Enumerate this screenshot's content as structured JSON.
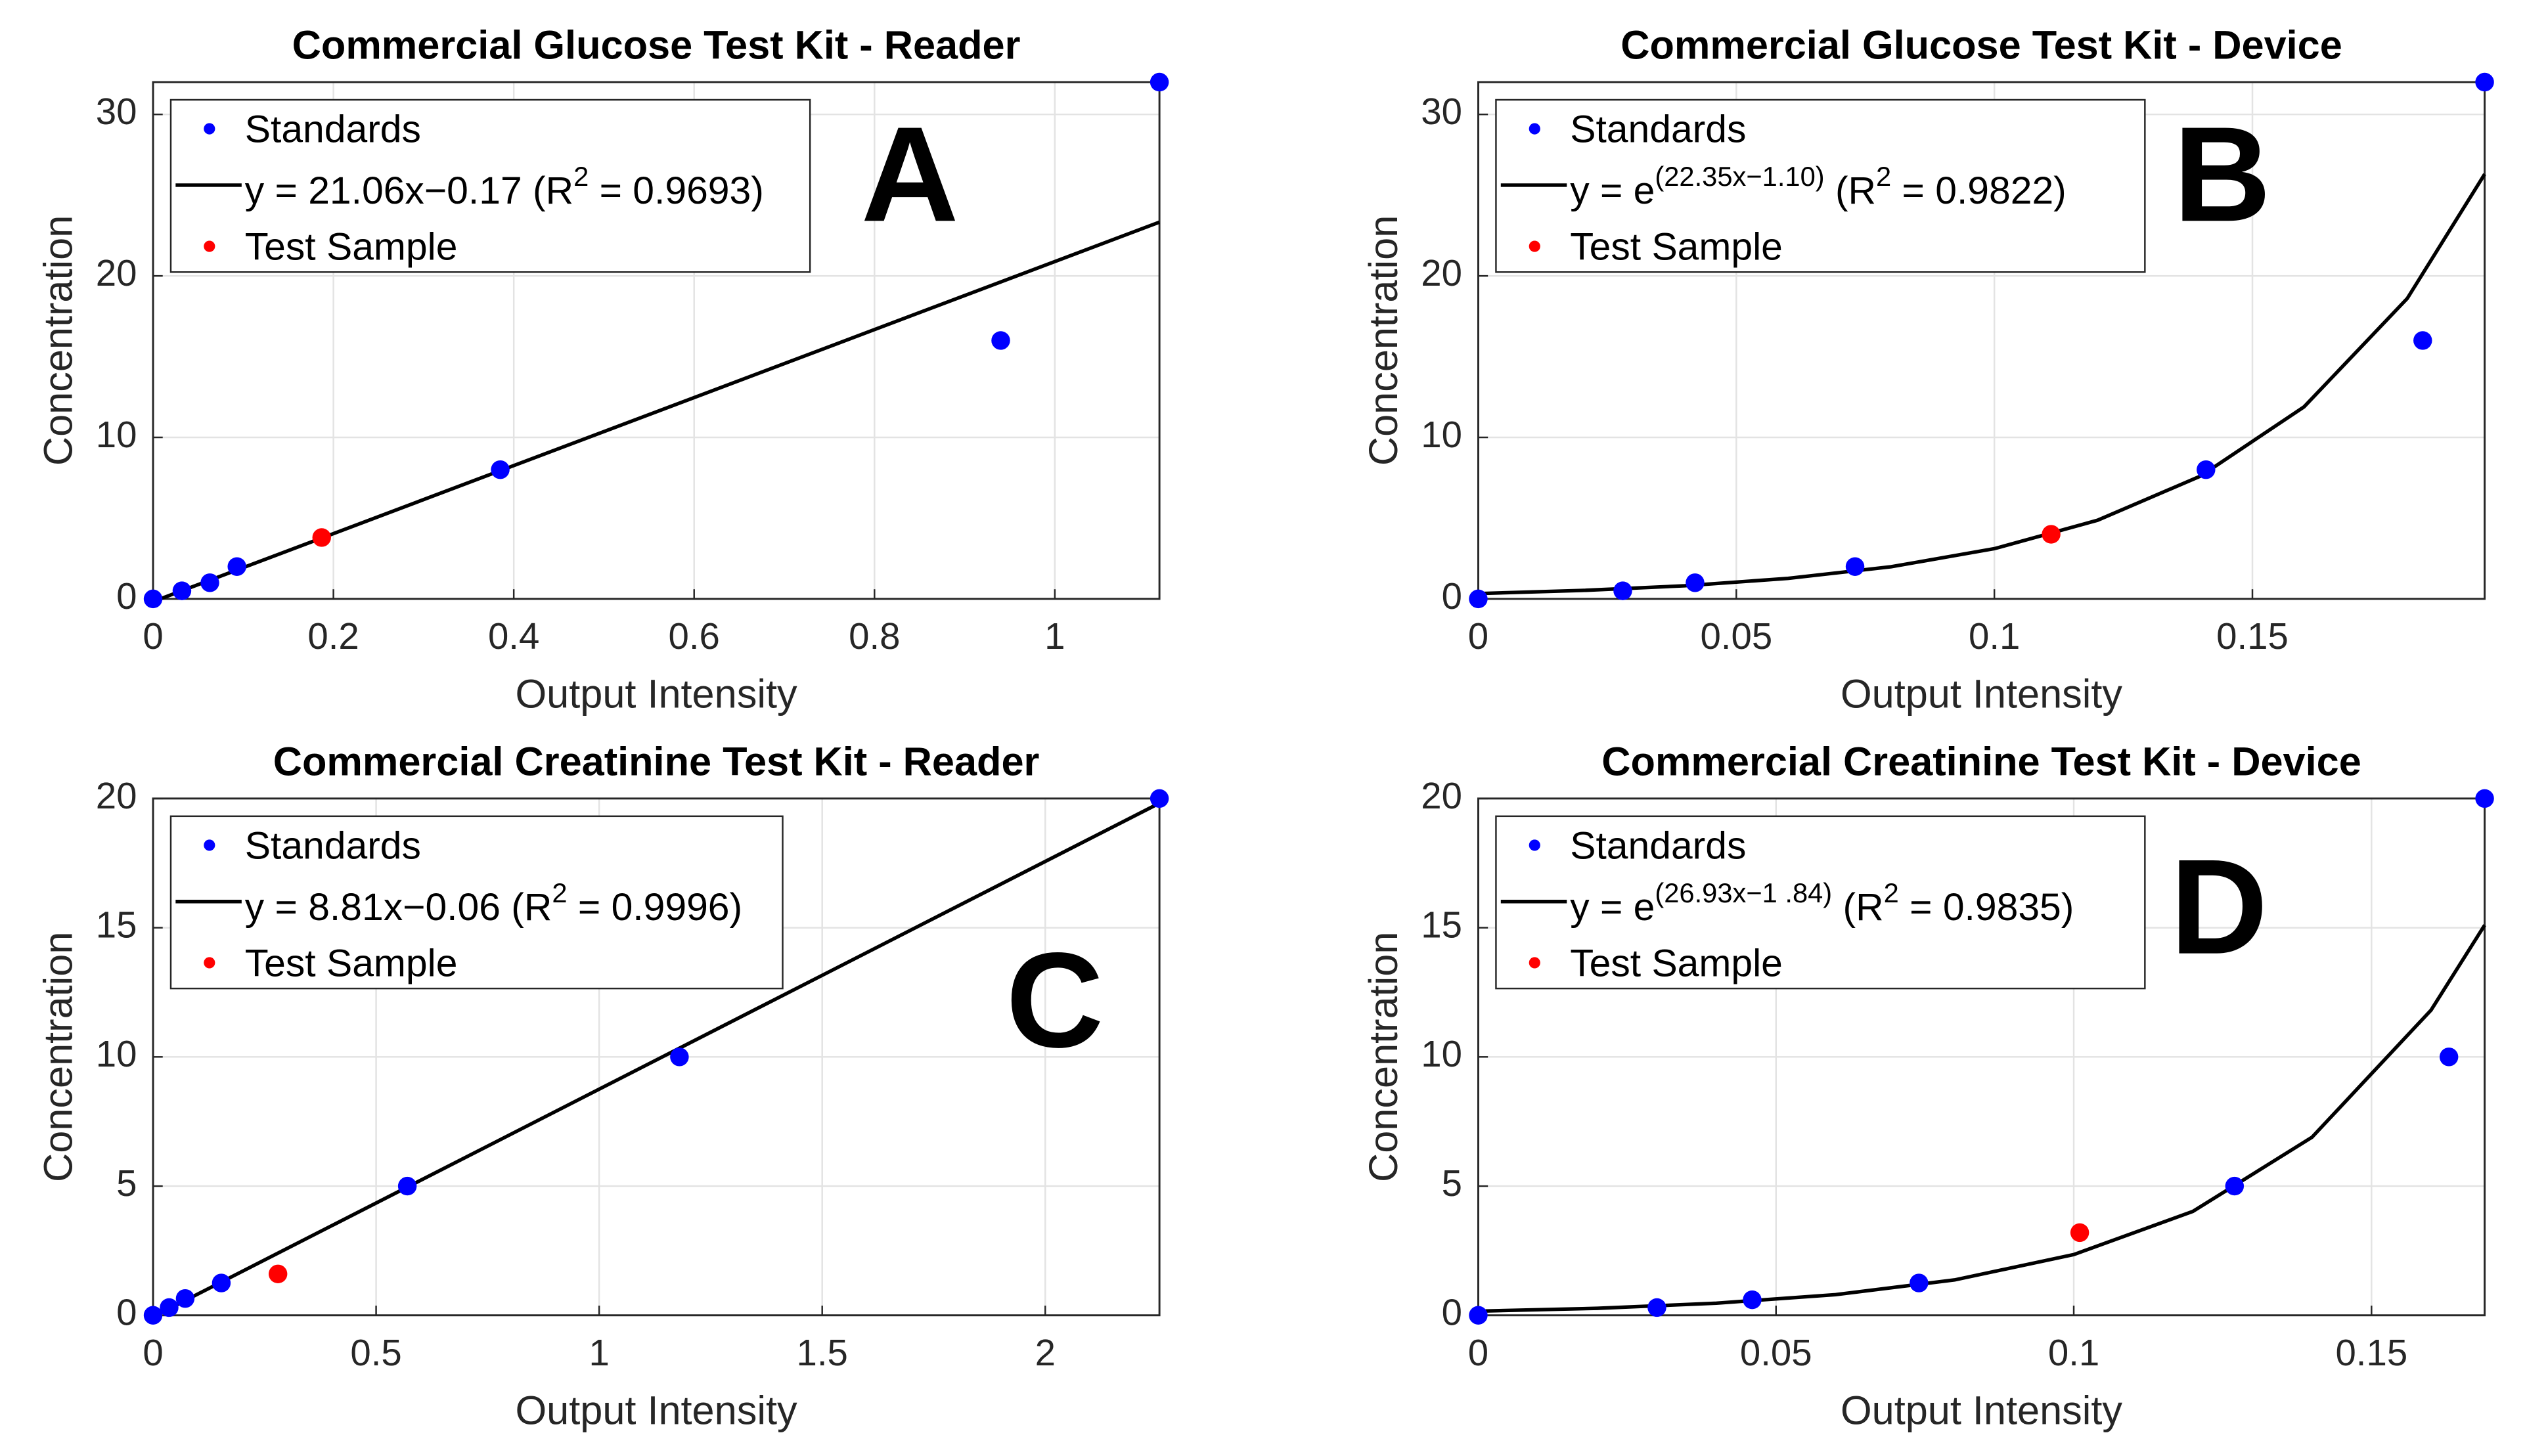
{
  "chart_data": [
    {
      "type": "scatter",
      "title": "Commercial Glucose Test Kit - Reader",
      "panel_label": "A",
      "x_label": "Output Intensity",
      "y_label": "Concentration",
      "xlim": [
        0,
        1.116
      ],
      "ylim": [
        0,
        32
      ],
      "xticks": [
        0,
        0.2,
        0.4,
        0.6,
        0.8,
        1
      ],
      "yticks": [
        0,
        10,
        20,
        30
      ],
      "grid": true,
      "series": [
        {
          "name": "Standards",
          "color": "#0000ff",
          "kind": "points",
          "x": [
            0,
            0.032,
            0.063,
            0.093,
            0.385,
            0.94,
            1.116
          ],
          "values": [
            0,
            0.5,
            1,
            2,
            8,
            16,
            32
          ]
        },
        {
          "name": [
            "y = 21.06x−0.17 (R",
            "2",
            " = 0.9693)"
          ],
          "superscript": [
            1
          ],
          "color": "#000000",
          "kind": "line",
          "x": [
            0.008,
            1.116
          ],
          "values": [
            0,
            23.33
          ]
        },
        {
          "name": "Test Sample",
          "color": "#ff0000",
          "kind": "points",
          "x": [
            0.187
          ],
          "values": [
            3.8
          ]
        }
      ]
    },
    {
      "type": "scatter",
      "title": "Commercial Glucose Test Kit - Device",
      "panel_label": "B",
      "x_label": "Output Intensity",
      "y_label": "Concentration",
      "xlim": [
        0,
        0.195
      ],
      "ylim": [
        0,
        32
      ],
      "xticks": [
        0,
        0.05,
        0.1,
        0.15
      ],
      "yticks": [
        0,
        10,
        20,
        30
      ],
      "grid": true,
      "series": [
        {
          "name": "Standards",
          "color": "#0000ff",
          "kind": "points",
          "x": [
            0,
            0.028,
            0.042,
            0.073,
            0.141,
            0.183,
            0.195
          ],
          "values": [
            0,
            0.5,
            1,
            2,
            8,
            16,
            32
          ]
        },
        {
          "name": [
            "y = e",
            "(22.35x−1.10)",
            " (R",
            "2",
            " = 0.9822)"
          ],
          "superscript": [
            1,
            3
          ],
          "color": "#000000",
          "kind": "line",
          "x": [
            0,
            0.02,
            0.04,
            0.06,
            0.08,
            0.1,
            0.12,
            0.14,
            0.16,
            0.18,
            0.195
          ],
          "values": [
            0.33,
            0.52,
            0.81,
            1.27,
            1.99,
            3.11,
            4.87,
            7.61,
            11.89,
            18.6,
            26.3
          ]
        },
        {
          "name": "Test Sample",
          "color": "#ff0000",
          "kind": "points",
          "x": [
            0.111
          ],
          "values": [
            4
          ]
        }
      ]
    },
    {
      "type": "scatter",
      "title": "Commercial Creatinine Test Kit - Reader",
      "panel_label": "C",
      "x_label": "Output Intensity",
      "y_label": "Concentration",
      "xlim": [
        0,
        2.256
      ],
      "ylim": [
        0,
        20
      ],
      "xticks": [
        0,
        0.5,
        1,
        1.5,
        2
      ],
      "yticks": [
        0,
        5,
        10,
        15,
        20
      ],
      "grid": true,
      "series": [
        {
          "name": "Standards",
          "color": "#0000ff",
          "kind": "points",
          "x": [
            0,
            0.036,
            0.072,
            0.153,
            0.57,
            1.18,
            2.256
          ],
          "values": [
            0,
            0.3,
            0.65,
            1.25,
            5,
            10,
            20
          ]
        },
        {
          "name": [
            "y = 8.81x−0.06 (R",
            "2",
            " = 0.9996)"
          ],
          "superscript": [
            1
          ],
          "color": "#000000",
          "kind": "line",
          "x": [
            0.007,
            2.256
          ],
          "values": [
            0,
            19.82
          ]
        },
        {
          "name": "Test Sample",
          "color": "#ff0000",
          "kind": "points",
          "x": [
            0.28
          ],
          "values": [
            1.6
          ]
        }
      ]
    },
    {
      "type": "scatter",
      "title": "Commercial Creatinine Test Kit - Device",
      "panel_label": "D",
      "x_label": "Output Intensity",
      "y_label": "Concentration",
      "xlim": [
        0,
        0.169
      ],
      "ylim": [
        0,
        20
      ],
      "xticks": [
        0,
        0.05,
        0.1,
        0.15
      ],
      "yticks": [
        0,
        5,
        10,
        15,
        20
      ],
      "grid": true,
      "series": [
        {
          "name": "Standards",
          "color": "#0000ff",
          "kind": "points",
          "x": [
            0,
            0.03,
            0.046,
            0.074,
            0.127,
            0.163,
            0.169
          ],
          "values": [
            0,
            0.3,
            0.6,
            1.25,
            5,
            10,
            20
          ]
        },
        {
          "name": [
            "y = e",
            "(26.93x−1 .84)",
            " (R",
            "2",
            " = 0.9835)"
          ],
          "superscript": [
            1,
            3
          ],
          "color": "#000000",
          "kind": "line",
          "x": [
            0,
            0.02,
            0.04,
            0.06,
            0.08,
            0.1,
            0.12,
            0.14,
            0.16,
            0.169
          ],
          "values": [
            0.16,
            0.27,
            0.47,
            0.8,
            1.37,
            2.35,
            4.02,
            6.89,
            11.81,
            15.1
          ]
        },
        {
          "name": "Test Sample",
          "color": "#ff0000",
          "kind": "points",
          "x": [
            0.101
          ],
          "values": [
            3.2
          ]
        }
      ]
    }
  ]
}
